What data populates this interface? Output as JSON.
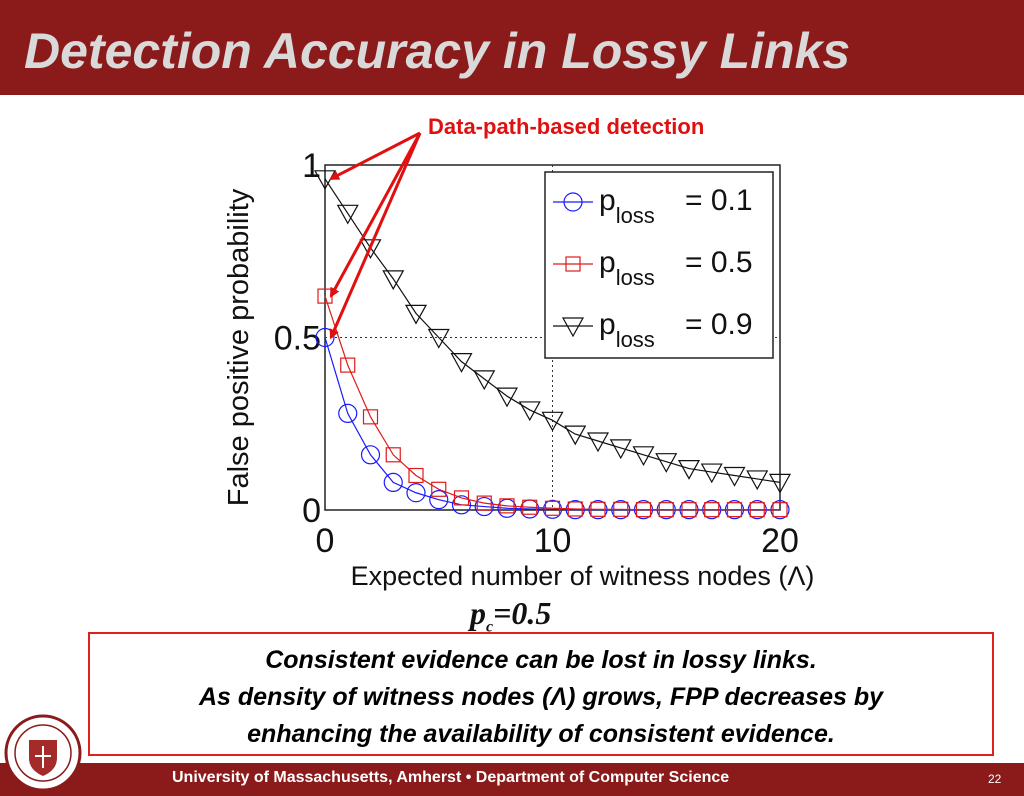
{
  "slide": {
    "title": "Detection Accuracy in Lossy Links",
    "callout_label": "Data-path-based detection",
    "pc_main": "p",
    "pc_sub": "c",
    "pc_value": "=0.5",
    "note_lines": [
      "Consistent evidence can be lost in lossy links.",
      "As density of witness nodes (Λ) grows, FPP decreases by",
      "enhancing the availability of consistent evidence."
    ],
    "footer": "University of Massachusetts, Amherst  •  Department of Computer Science",
    "page_number": "22",
    "colors": {
      "brand": "#8b1a1a",
      "callout": "#e01010",
      "box_border": "#e0201c"
    }
  },
  "chart_data": {
    "type": "line",
    "xlabel": "Expected number of witness nodes (Λ)",
    "ylabel": "False positive probability",
    "xlim": [
      0,
      20
    ],
    "ylim": [
      0,
      1
    ],
    "x_ticks": [
      "0",
      "10",
      "20"
    ],
    "y_ticks": [
      "0",
      "0.5",
      "1"
    ],
    "grid": "dotted reference lines at x=10 and y=0.5",
    "legend_position": "top-right",
    "x": [
      0,
      1,
      2,
      3,
      4,
      5,
      6,
      7,
      8,
      9,
      10,
      11,
      12,
      13,
      14,
      15,
      16,
      17,
      18,
      19,
      20
    ],
    "series": [
      {
        "label_main": "p",
        "label_sub": "loss",
        "label_value": "= 0.1",
        "color": "#1a1aff",
        "marker": "circle",
        "values": [
          0.5,
          0.28,
          0.16,
          0.08,
          0.05,
          0.03,
          0.015,
          0.01,
          0.005,
          0.003,
          0.002,
          0.001,
          0.001,
          0.001,
          0.001,
          0.001,
          0.001,
          0.001,
          0.001,
          0.001,
          0.001
        ]
      },
      {
        "label_main": "p",
        "label_sub": "loss",
        "label_value": "= 0.5",
        "color": "#e01a1a",
        "marker": "square",
        "values": [
          0.62,
          0.42,
          0.27,
          0.16,
          0.1,
          0.06,
          0.035,
          0.02,
          0.012,
          0.008,
          0.005,
          0.003,
          0.002,
          0.002,
          0.001,
          0.001,
          0.001,
          0.001,
          0.001,
          0.001,
          0.001
        ]
      },
      {
        "label_main": "p",
        "label_sub": "loss",
        "label_value": "= 0.9",
        "color": "#111111",
        "marker": "triangle-down",
        "values": [
          0.96,
          0.86,
          0.76,
          0.67,
          0.57,
          0.5,
          0.43,
          0.38,
          0.33,
          0.29,
          0.26,
          0.22,
          0.2,
          0.18,
          0.16,
          0.14,
          0.12,
          0.11,
          0.1,
          0.09,
          0.08
        ]
      }
    ],
    "callout_targets": [
      {
        "series": 2,
        "x": 0
      },
      {
        "series": 1,
        "x": 0
      },
      {
        "series": 0,
        "x": 0
      }
    ]
  }
}
